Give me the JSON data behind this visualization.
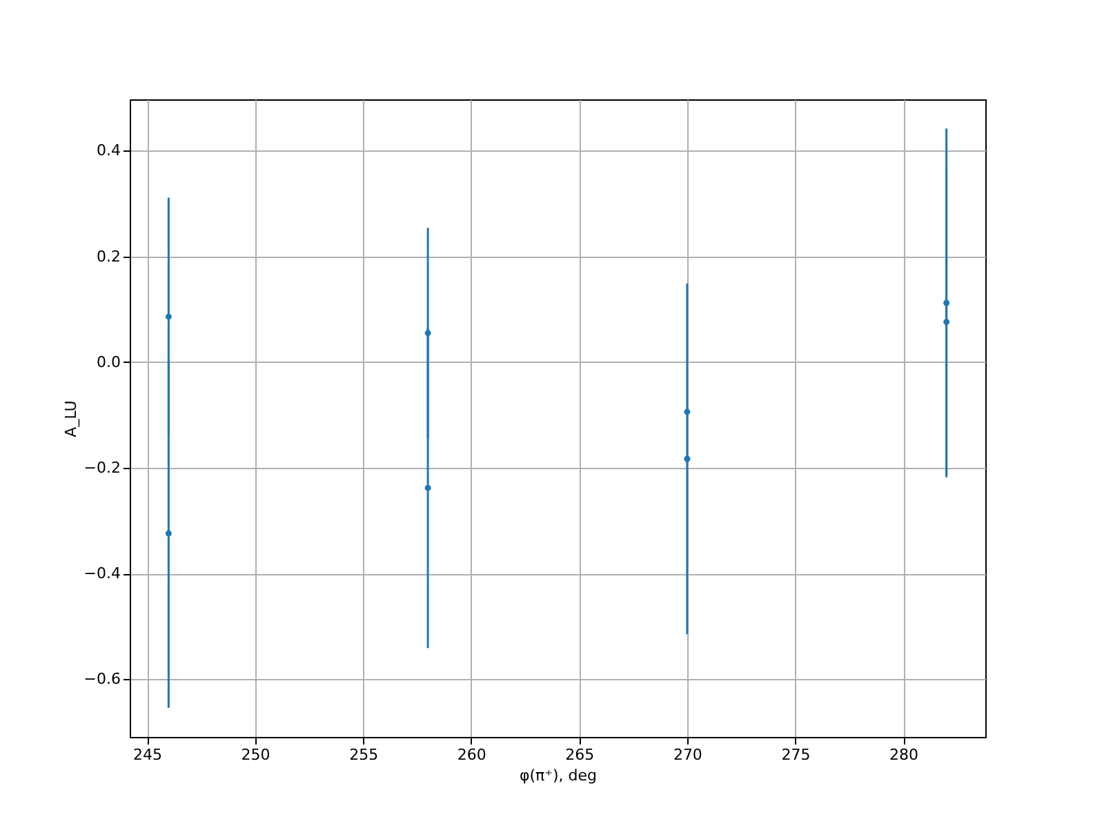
{
  "chart_data": {
    "type": "scatter",
    "xlabel": "φ(π⁺), deg",
    "ylabel": "A_LU",
    "x": [
      246,
      258,
      270,
      282
    ],
    "series": [
      {
        "color": "#1f77b4",
        "values": [
          0.086,
          0.055,
          -0.094,
          0.112
        ],
        "errors": [
          0.225,
          0.199,
          null,
          0.33
        ]
      },
      {
        "color": "#1f77b4",
        "values": [
          -0.324,
          -0.238,
          -0.183,
          0.076
        ],
        "errors": [
          0.33,
          0.303,
          0.332,
          0.29
        ]
      }
    ],
    "xlim": [
      244.2,
      283.8
    ],
    "ylim": [
      -0.709,
      0.497
    ],
    "xticks": [
      245,
      250,
      255,
      260,
      265,
      270,
      275,
      280
    ],
    "yticks": [
      -0.6,
      -0.4,
      -0.2,
      {
        "value": 0,
        "label": "0.0"
      },
      0.2,
      0.4
    ],
    "grid": true,
    "marker": "circle",
    "legend": false
  }
}
